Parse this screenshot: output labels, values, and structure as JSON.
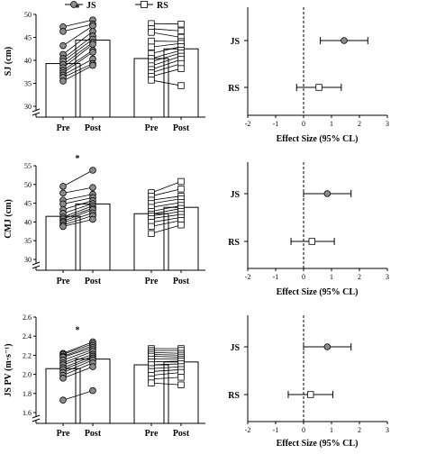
{
  "legend": {
    "js_label": "JS",
    "rs_label": "RS",
    "js_marker": "filled-circle",
    "rs_marker": "open-square"
  },
  "colors": {
    "js_fill": "#8c8c8c",
    "rs_fill": "#ffffff",
    "line": "#000000",
    "dashed_zero": "#000000"
  },
  "chart_data": [
    {
      "type": "bar",
      "panel": "SJ",
      "ylabel": "SJ (cm)",
      "ylim": [
        30,
        50
      ],
      "yticks": [
        30,
        35,
        40,
        45,
        50
      ],
      "axis_break": true,
      "categories": [
        "Pre",
        "Post",
        "Pre",
        "Post"
      ],
      "groups": [
        {
          "name": "JS",
          "marker": "filled-circle",
          "significance": "*",
          "pre_mean": 39.3,
          "post_mean": 44.4,
          "pairs": [
            [
              47.3,
              48.8
            ],
            [
              46.3,
              47.9
            ],
            [
              43.2,
              47.5
            ],
            [
              41.3,
              46.3
            ],
            [
              40.4,
              45.3
            ],
            [
              39.8,
              44.6
            ],
            [
              39.1,
              43.9
            ],
            [
              38.4,
              43.5
            ],
            [
              37.8,
              42.2
            ],
            [
              37.3,
              41.8
            ],
            [
              36.8,
              40.3
            ],
            [
              36.3,
              39.3
            ],
            [
              35.5,
              38.9
            ]
          ]
        },
        {
          "name": "RS",
          "marker": "open-square",
          "significance": "",
          "pre_mean": 40.4,
          "post_mean": 42.5,
          "pairs": [
            [
              48.0,
              47.9
            ],
            [
              46.9,
              46.4
            ],
            [
              46.1,
              45.0
            ],
            [
              44.2,
              44.1
            ],
            [
              42.9,
              43.7
            ],
            [
              41.5,
              43.0
            ],
            [
              40.4,
              42.2
            ],
            [
              39.7,
              41.6
            ],
            [
              38.8,
              40.9
            ],
            [
              38.0,
              40.2
            ],
            [
              37.3,
              39.3
            ],
            [
              36.5,
              38.2
            ],
            [
              35.7,
              34.5
            ]
          ]
        }
      ]
    },
    {
      "type": "scatter",
      "panel": "SJ-ES",
      "xlabel": "Effect Size (95% CL)",
      "xlim": [
        -2,
        3
      ],
      "xticks": [
        "-2",
        "-1",
        "0",
        "1",
        "2",
        "3"
      ],
      "reference_line": 0,
      "rows": [
        {
          "name": "JS",
          "marker": "filled-circle",
          "es": 1.45,
          "ci": [
            0.6,
            2.3
          ]
        },
        {
          "name": "RS",
          "marker": "open-square",
          "es": 0.55,
          "ci": [
            -0.25,
            1.35
          ]
        }
      ]
    },
    {
      "type": "bar",
      "panel": "CMJ",
      "ylabel": "CMJ (cm)",
      "ylim": [
        30,
        55
      ],
      "yticks": [
        30,
        35,
        40,
        45,
        50,
        55
      ],
      "axis_break": true,
      "categories": [
        "Pre",
        "Post",
        "Pre",
        "Post"
      ],
      "groups": [
        {
          "name": "JS",
          "marker": "filled-circle",
          "significance": "*",
          "pre_mean": 41.5,
          "post_mean": 44.8,
          "pairs": [
            [
              49.5,
              53.8
            ],
            [
              47.7,
              49.2
            ],
            [
              45.8,
              47.4
            ],
            [
              44.8,
              46.5
            ],
            [
              43.3,
              45.7
            ],
            [
              42.3,
              44.9
            ],
            [
              41.3,
              44.3
            ],
            [
              40.8,
              43.7
            ],
            [
              40.2,
              43.3
            ],
            [
              39.8,
              42.4
            ],
            [
              39.2,
              41.7
            ],
            [
              38.8,
              40.7
            ]
          ]
        },
        {
          "name": "RS",
          "marker": "open-square",
          "significance": "",
          "pre_mean": 42.2,
          "post_mean": 43.9,
          "pairs": [
            [
              47.8,
              50.8
            ],
            [
              46.9,
              48.8
            ],
            [
              45.8,
              46.9
            ],
            [
              44.9,
              46.2
            ],
            [
              43.9,
              45.2
            ],
            [
              42.8,
              44.4
            ],
            [
              42.1,
              43.6
            ],
            [
              41.6,
              42.8
            ],
            [
              40.9,
              42.0
            ],
            [
              39.9,
              41.2
            ],
            [
              38.8,
              40.4
            ],
            [
              36.9,
              39.2
            ]
          ]
        }
      ]
    },
    {
      "type": "scatter",
      "panel": "CMJ-ES",
      "xlabel": "Effect Size (95% CL)",
      "xlim": [
        -2,
        3
      ],
      "xticks": [
        "-2",
        "-1",
        "0",
        "1",
        "2",
        "3"
      ],
      "reference_line": 0,
      "rows": [
        {
          "name": "JS",
          "marker": "filled-circle",
          "es": 0.85,
          "ci": [
            0.0,
            1.7
          ]
        },
        {
          "name": "RS",
          "marker": "open-square",
          "es": 0.3,
          "ci": [
            -0.45,
            1.1
          ]
        }
      ]
    },
    {
      "type": "bar",
      "panel": "JS PV",
      "ylabel": "JS PV (m·s⁻¹)",
      "ylim": [
        1.6,
        2.6
      ],
      "yticks": [
        "1.6",
        "1.8",
        "2.0",
        "2.2",
        "2.4",
        "2.6"
      ],
      "axis_break": true,
      "categories": [
        "Pre",
        "Post",
        "Pre",
        "Post"
      ],
      "groups": [
        {
          "name": "JS",
          "marker": "filled-circle",
          "significance": "*",
          "pre_mean": 2.06,
          "post_mean": 2.16,
          "pairs": [
            [
              2.22,
              2.34
            ],
            [
              2.21,
              2.32
            ],
            [
              2.19,
              2.3
            ],
            [
              2.18,
              2.28
            ],
            [
              2.15,
              2.26
            ],
            [
              2.12,
              2.24
            ],
            [
              2.1,
              2.21
            ],
            [
              2.07,
              2.19
            ],
            [
              2.05,
              2.17
            ],
            [
              2.02,
              2.15
            ],
            [
              1.99,
              2.12
            ],
            [
              1.96,
              2.08
            ],
            [
              1.73,
              1.83
            ]
          ]
        },
        {
          "name": "RS",
          "marker": "open-square",
          "significance": "",
          "pre_mean": 2.1,
          "post_mean": 2.13,
          "pairs": [
            [
              2.27,
              2.27
            ],
            [
              2.25,
              2.25
            ],
            [
              2.23,
              2.22
            ],
            [
              2.21,
              2.2
            ],
            [
              2.19,
              2.18
            ],
            [
              2.16,
              2.16
            ],
            [
              2.13,
              2.14
            ],
            [
              2.1,
              2.11
            ],
            [
              2.06,
              2.08
            ],
            [
              2.03,
              2.05
            ],
            [
              1.99,
              2.02
            ],
            [
              1.95,
              1.97
            ],
            [
              1.91,
              1.89
            ]
          ]
        }
      ]
    },
    {
      "type": "scatter",
      "panel": "JSPV-ES",
      "xlabel": "Effect Size (95% CL)",
      "xlim": [
        -2,
        3
      ],
      "xticks": [
        "-2",
        "-1",
        "0",
        "1",
        "2",
        "3"
      ],
      "reference_line": 0,
      "rows": [
        {
          "name": "JS",
          "marker": "filled-circle",
          "es": 0.85,
          "ci": [
            0.0,
            1.7
          ]
        },
        {
          "name": "RS",
          "marker": "open-square",
          "es": 0.25,
          "ci": [
            -0.55,
            1.05
          ]
        }
      ]
    }
  ]
}
